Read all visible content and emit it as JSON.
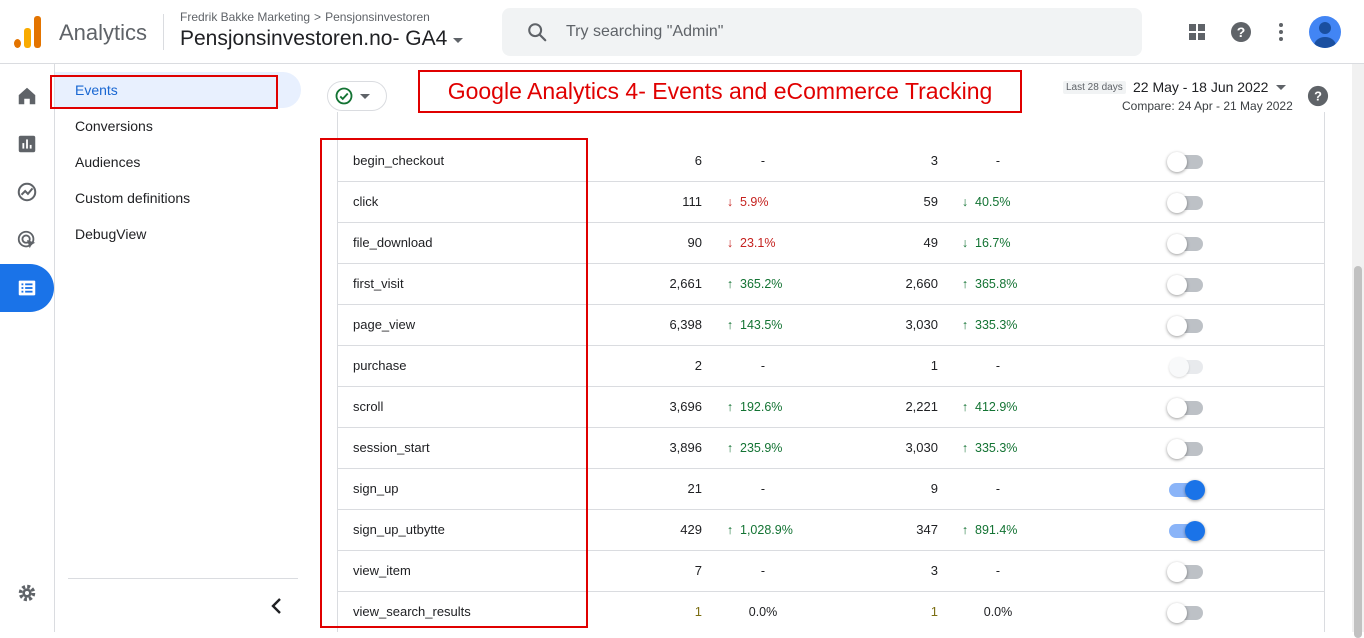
{
  "app": {
    "name": "Analytics"
  },
  "breadcrumb": {
    "account": "Fredrik Bakke Marketing",
    "separator": ">",
    "property_path": "Pensjonsinvestoren"
  },
  "property": {
    "name": "Pensjonsinvestoren.no- GA4"
  },
  "search": {
    "placeholder": "Try searching \"Admin\""
  },
  "rail": {
    "items": [
      "home-icon",
      "reports-icon",
      "explore-icon",
      "advertising-icon",
      "configure-icon"
    ],
    "active": "configure-icon",
    "settings_icon": "gear-icon"
  },
  "subnav": {
    "items": [
      {
        "label": "Events",
        "active": true
      },
      {
        "label": "Conversions",
        "active": false
      },
      {
        "label": "Audiences",
        "active": false
      },
      {
        "label": "Custom definitions",
        "active": false
      },
      {
        "label": "DebugView",
        "active": false
      }
    ]
  },
  "banner": {
    "text": "Google Analytics 4- Events and eCommerce Tracking"
  },
  "date": {
    "label": "Last 28 days",
    "range": "22 May - 18 Jun 2022",
    "compare": "Compare: 24 Apr - 21 May 2022"
  },
  "colors": {
    "accent": "#1a73e8",
    "annotation": "#e00000",
    "up": "#137333",
    "down": "#c5221f"
  },
  "events": [
    {
      "name": "begin_checkout",
      "count": "6",
      "change": "-",
      "dir": "none",
      "users": "3",
      "users_change": "-",
      "users_dir": "none",
      "toggle": "off"
    },
    {
      "name": "click",
      "count": "111",
      "change": "5.9%",
      "dir": "down",
      "users": "59",
      "users_change": "40.5%",
      "users_dir": "down-green",
      "toggle": "off"
    },
    {
      "name": "file_download",
      "count": "90",
      "change": "23.1%",
      "dir": "down",
      "users": "49",
      "users_change": "16.7%",
      "users_dir": "down-green",
      "toggle": "off"
    },
    {
      "name": "first_visit",
      "count": "2,661",
      "change": "365.2%",
      "dir": "up",
      "users": "2,660",
      "users_change": "365.8%",
      "users_dir": "up",
      "toggle": "off"
    },
    {
      "name": "page_view",
      "count": "6,398",
      "change": "143.5%",
      "dir": "up",
      "users": "3,030",
      "users_change": "335.3%",
      "users_dir": "up",
      "toggle": "off"
    },
    {
      "name": "purchase",
      "count": "2",
      "change": "-",
      "dir": "none",
      "users": "1",
      "users_change": "-",
      "users_dir": "none",
      "toggle": "disabled"
    },
    {
      "name": "scroll",
      "count": "3,696",
      "change": "192.6%",
      "dir": "up",
      "users": "2,221",
      "users_change": "412.9%",
      "users_dir": "up",
      "toggle": "off"
    },
    {
      "name": "session_start",
      "count": "3,896",
      "change": "235.9%",
      "dir": "up",
      "users": "3,030",
      "users_change": "335.3%",
      "users_dir": "up",
      "toggle": "off"
    },
    {
      "name": "sign_up",
      "count": "21",
      "change": "-",
      "dir": "none",
      "users": "9",
      "users_change": "-",
      "users_dir": "none",
      "toggle": "on"
    },
    {
      "name": "sign_up_utbytte",
      "count": "429",
      "change": "1,028.9%",
      "dir": "up",
      "users": "347",
      "users_change": "891.4%",
      "users_dir": "up",
      "toggle": "on"
    },
    {
      "name": "view_item",
      "count": "7",
      "change": "-",
      "dir": "none",
      "users": "3",
      "users_change": "-",
      "users_dir": "none",
      "toggle": "off"
    },
    {
      "name": "view_search_results",
      "count": "1",
      "change": "0.0%",
      "dir": "flat",
      "users": "1",
      "users_change": "0.0%",
      "users_dir": "flat",
      "toggle": "off"
    }
  ]
}
